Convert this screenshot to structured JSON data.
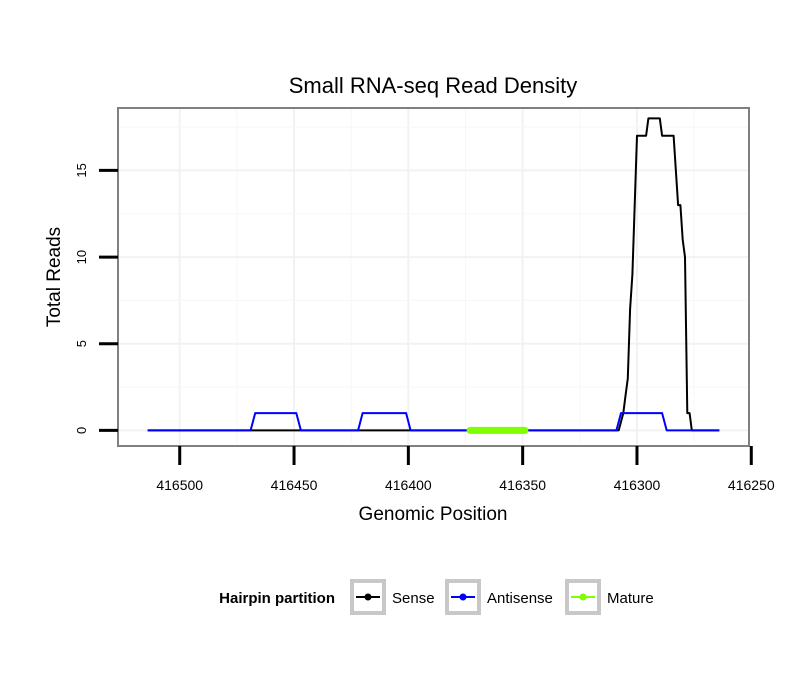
{
  "chart_data": {
    "type": "line",
    "title": "Small RNA-seq Read Density",
    "xlabel": "Genomic Position",
    "ylabel": "Total Reads",
    "xlim": [
      416527,
      416251
    ],
    "ylim": [
      -0.9,
      18.6
    ],
    "grid": true,
    "x_reversed": true,
    "x_ticks": [
      416500,
      416450,
      416400,
      416350,
      416300,
      416250
    ],
    "x_tick_labels": [
      "416500",
      "416450",
      "416400",
      "416350",
      "416300",
      "416250"
    ],
    "y_ticks": [
      0,
      5,
      10,
      15
    ],
    "y_tick_labels": [
      "0",
      "5",
      "10",
      "15"
    ],
    "legend": {
      "title": "Hairpin partition",
      "position": "bottom",
      "entries": [
        "Sense",
        "Antisense",
        "Mature"
      ]
    },
    "series": [
      {
        "name": "Sense",
        "color": "#000000",
        "x": [
          416514,
          416308,
          416306,
          416305,
          416304,
          416303,
          416302,
          416300,
          416298,
          416296,
          416295,
          416294,
          416290,
          416289,
          416288,
          416284,
          416282,
          416281,
          416280,
          416279,
          416278,
          416277,
          416276,
          416275,
          416274,
          416273,
          416264
        ],
        "y": [
          0,
          0,
          1,
          2,
          3,
          7,
          9,
          17,
          17,
          17,
          18,
          18,
          18,
          17,
          17,
          17,
          13,
          13,
          11,
          10,
          1,
          1,
          0,
          0,
          0,
          0,
          0
        ]
      },
      {
        "name": "Antisense",
        "color": "#0000ff",
        "x": [
          416514,
          416469,
          416467,
          416449,
          416447,
          416422,
          416420,
          416401,
          416399,
          416309,
          416307,
          416289,
          416287,
          416264
        ],
        "y": [
          0,
          0,
          1,
          1,
          0,
          0,
          1,
          1,
          0,
          0,
          1,
          1,
          0,
          0
        ]
      },
      {
        "name": "Mature",
        "color": "#7fff00",
        "x": [
          416373,
          416349
        ],
        "y": [
          0,
          0
        ]
      }
    ]
  }
}
